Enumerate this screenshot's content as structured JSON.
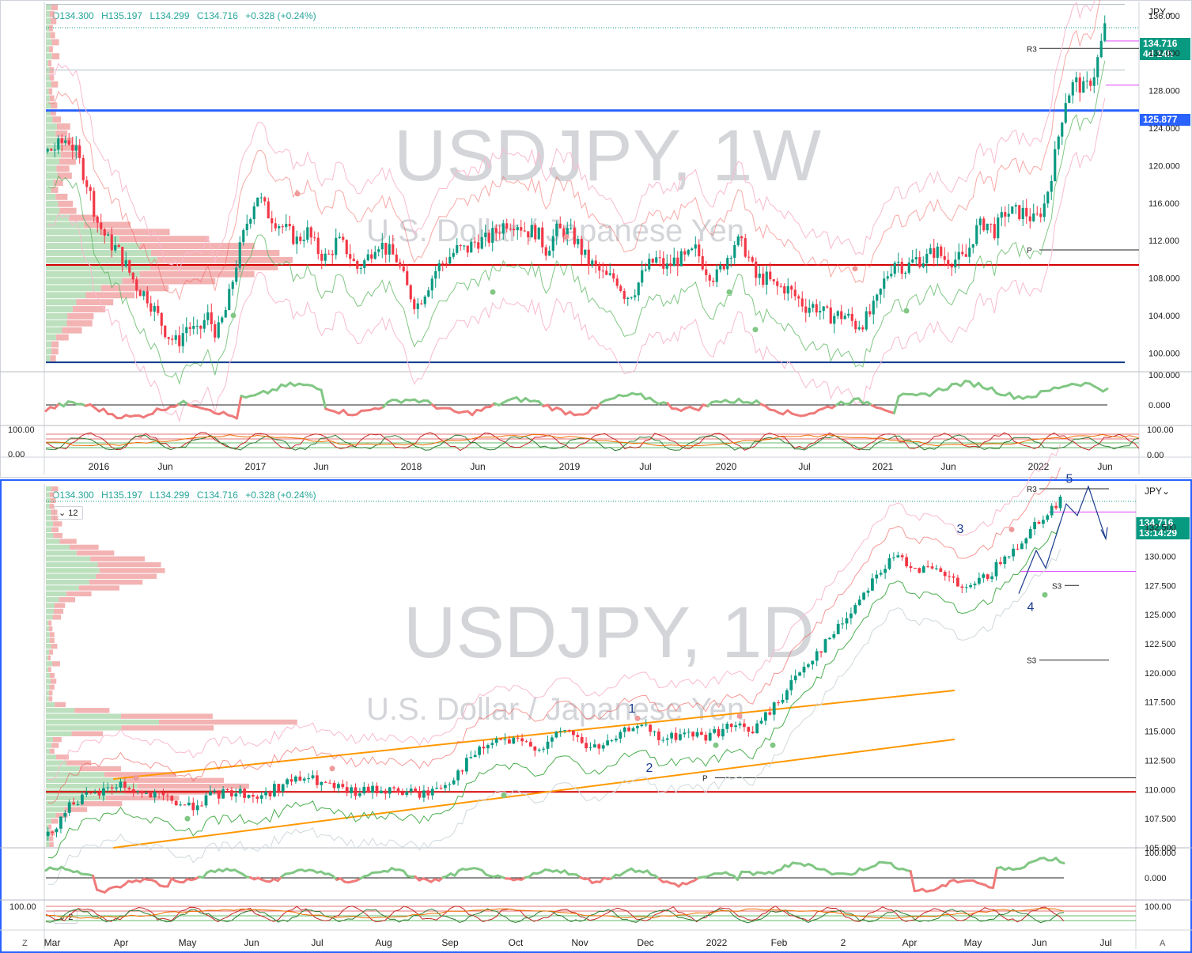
{
  "weekly": {
    "ohlc": {
      "o": "O134.300",
      "h": "H135.197",
      "l": "L134.299",
      "c": "C134.716",
      "chg": "+0.328 (+0.24%)"
    },
    "watermark_title": "USDJPY, 1W",
    "watermark_subtitle": "U.S. Dollar / Japanese Yen",
    "currency": "JPY",
    "price_ticks": [
      "136.000",
      "132.000",
      "128.000",
      "124.000",
      "120.000",
      "116.000",
      "112.000",
      "108.000",
      "104.000",
      "100.000"
    ],
    "price_tag": {
      "value": "134.716",
      "time": "4d 14h",
      "color": "#089981"
    },
    "level_tag": {
      "value": "125.877",
      "color": "#2962ff"
    },
    "time_ticks": [
      "2016",
      "Jun",
      "2017",
      "Jun",
      "2018",
      "Jun",
      "2019",
      "Jul",
      "2020",
      "Jul",
      "2021",
      "Jun",
      "2022",
      "Jun"
    ],
    "pivot_labels": [
      "R3",
      "P"
    ],
    "osc1_ticks": [
      "100.000",
      "0.000"
    ],
    "osc2_ticks": [
      "100.00",
      "0.00"
    ],
    "osc2_left_ticks": [
      "100.00",
      "0.00"
    ]
  },
  "daily": {
    "ohlc": {
      "o": "O134.300",
      "h": "H135.197",
      "l": "L134.299",
      "c": "C134.716",
      "chg": "+0.328 (+0.24%)"
    },
    "interval_selector": "12",
    "interval_selector_2": "2",
    "watermark_title": "USDJPY, 1D",
    "watermark_subtitle": "U.S. Dollar / Japanese Yen",
    "currency": "JPY",
    "price_ticks": [
      "132.500",
      "130.000",
      "127.500",
      "125.000",
      "122.500",
      "120.000",
      "117.500",
      "115.000",
      "112.500",
      "110.000",
      "107.500",
      "105.000"
    ],
    "price_tag": {
      "value": "134.716",
      "time": "13:14:29",
      "color": "#089981"
    },
    "time_ticks": [
      "Mar",
      "Apr",
      "May",
      "Jun",
      "Jul",
      "Aug",
      "Sep",
      "Oct",
      "Nov",
      "Dec",
      "2022",
      "Feb",
      "2",
      "Apr",
      "May",
      "Jun",
      "Jul"
    ],
    "pivot_labels": [
      "R3",
      "S3",
      "S3",
      "P"
    ],
    "wave_labels": [
      "1",
      "2",
      "3",
      "4",
      "5"
    ],
    "osc1_ticks": [
      "100.000",
      "0.000"
    ],
    "osc2_ticks": [
      "100.00"
    ],
    "osc2_left_ticks": [
      "100.00"
    ],
    "corner_left": "Z",
    "corner_right": "A"
  },
  "colors": {
    "up": "#089981",
    "down": "#f23645",
    "blue": "#2962ff",
    "navy": "#0d3a8c",
    "orange": "#ff9800",
    "magenta": "#e040fb",
    "green_line": "#4caf50",
    "red_line": "#e53935",
    "osc_green": "#81c784",
    "osc_red": "#ef7a7a"
  },
  "chart_data": [
    {
      "type": "candlestick",
      "title": "USDJPY, 1W",
      "subtitle": "U.S. Dollar / Japanese Yen",
      "ylim": [
        98,
        137
      ],
      "x_ticks": [
        "2016",
        "Jun",
        "2017",
        "Jun",
        "2018",
        "Jun",
        "2019",
        "Jul",
        "2020",
        "Jul",
        "2021",
        "Jun",
        "2022",
        "Jun"
      ],
      "close_path": [
        121.5,
        122,
        123,
        121,
        118,
        114,
        112,
        111,
        109,
        107,
        106,
        104,
        102,
        101,
        103,
        102,
        104,
        102,
        105,
        110,
        114,
        117,
        115,
        114,
        113,
        112,
        113,
        111,
        110,
        112,
        111,
        109,
        110,
        112,
        111,
        110,
        107,
        105,
        107,
        109,
        110,
        111,
        111,
        112,
        112,
        113,
        114,
        114,
        113,
        113,
        111,
        113,
        113,
        112,
        110,
        109,
        108,
        108,
        106,
        107,
        109,
        110,
        109,
        110,
        110,
        111,
        109,
        108,
        110,
        112,
        111,
        108,
        108,
        107,
        107,
        106,
        105,
        105,
        104,
        104,
        104,
        103,
        103.5,
        105,
        108,
        110,
        109,
        110,
        110,
        111,
        110,
        110,
        110,
        113,
        114,
        113,
        115,
        115,
        115,
        114,
        116,
        121,
        127,
        129,
        128,
        130,
        134.7
      ],
      "horizontal_levels": [
        125.877,
        109.4,
        99.0,
        133.3,
        130.2
      ],
      "pivots": {
        "R3": 132.5,
        "P": 111.0
      }
    },
    {
      "type": "candlestick",
      "title": "USDJPY, 1D",
      "subtitle": "U.S. Dollar / Japanese Yen",
      "ylim": [
        105,
        136
      ],
      "x_ticks": [
        "Mar",
        "Apr",
        "May",
        "Jun",
        "Jul",
        "Aug",
        "Sep",
        "Oct",
        "Nov",
        "Dec",
        "2022",
        "Feb",
        "2",
        "Apr",
        "May",
        "Jun",
        "Jul"
      ],
      "close_path": [
        106,
        109,
        109.5,
        110.5,
        109.6,
        109.2,
        108.5,
        109.5,
        109.8,
        109.3,
        110.5,
        111.0,
        110.2,
        109.7,
        110.0,
        109.8,
        109.6,
        110.6,
        112.8,
        114.2,
        114.0,
        113.6,
        115.2,
        113.5,
        114.0,
        115.8,
        114.2,
        114.8,
        114.6,
        115.4,
        115.1,
        117.5,
        120.3,
        122.5,
        125.0,
        128.0,
        130.0,
        129.0,
        128.5,
        127.0,
        128.5,
        130.5,
        133.0,
        134.7
      ],
      "wave_labels": {
        "1": 115.8,
        "2": 112.0,
        "3": 131.0,
        "4": 126.0,
        "5": 135.2
      },
      "channel": {
        "upper": [
          110.9,
          118.5
        ],
        "lower": [
          105.0,
          114.3
        ]
      },
      "horizontal_levels": [
        109.8,
        128.7,
        133.8
      ],
      "pivots": {
        "R3": 134.8,
        "P": 111.0,
        "S3": [
          127.5,
          121.1
        ]
      }
    }
  ]
}
